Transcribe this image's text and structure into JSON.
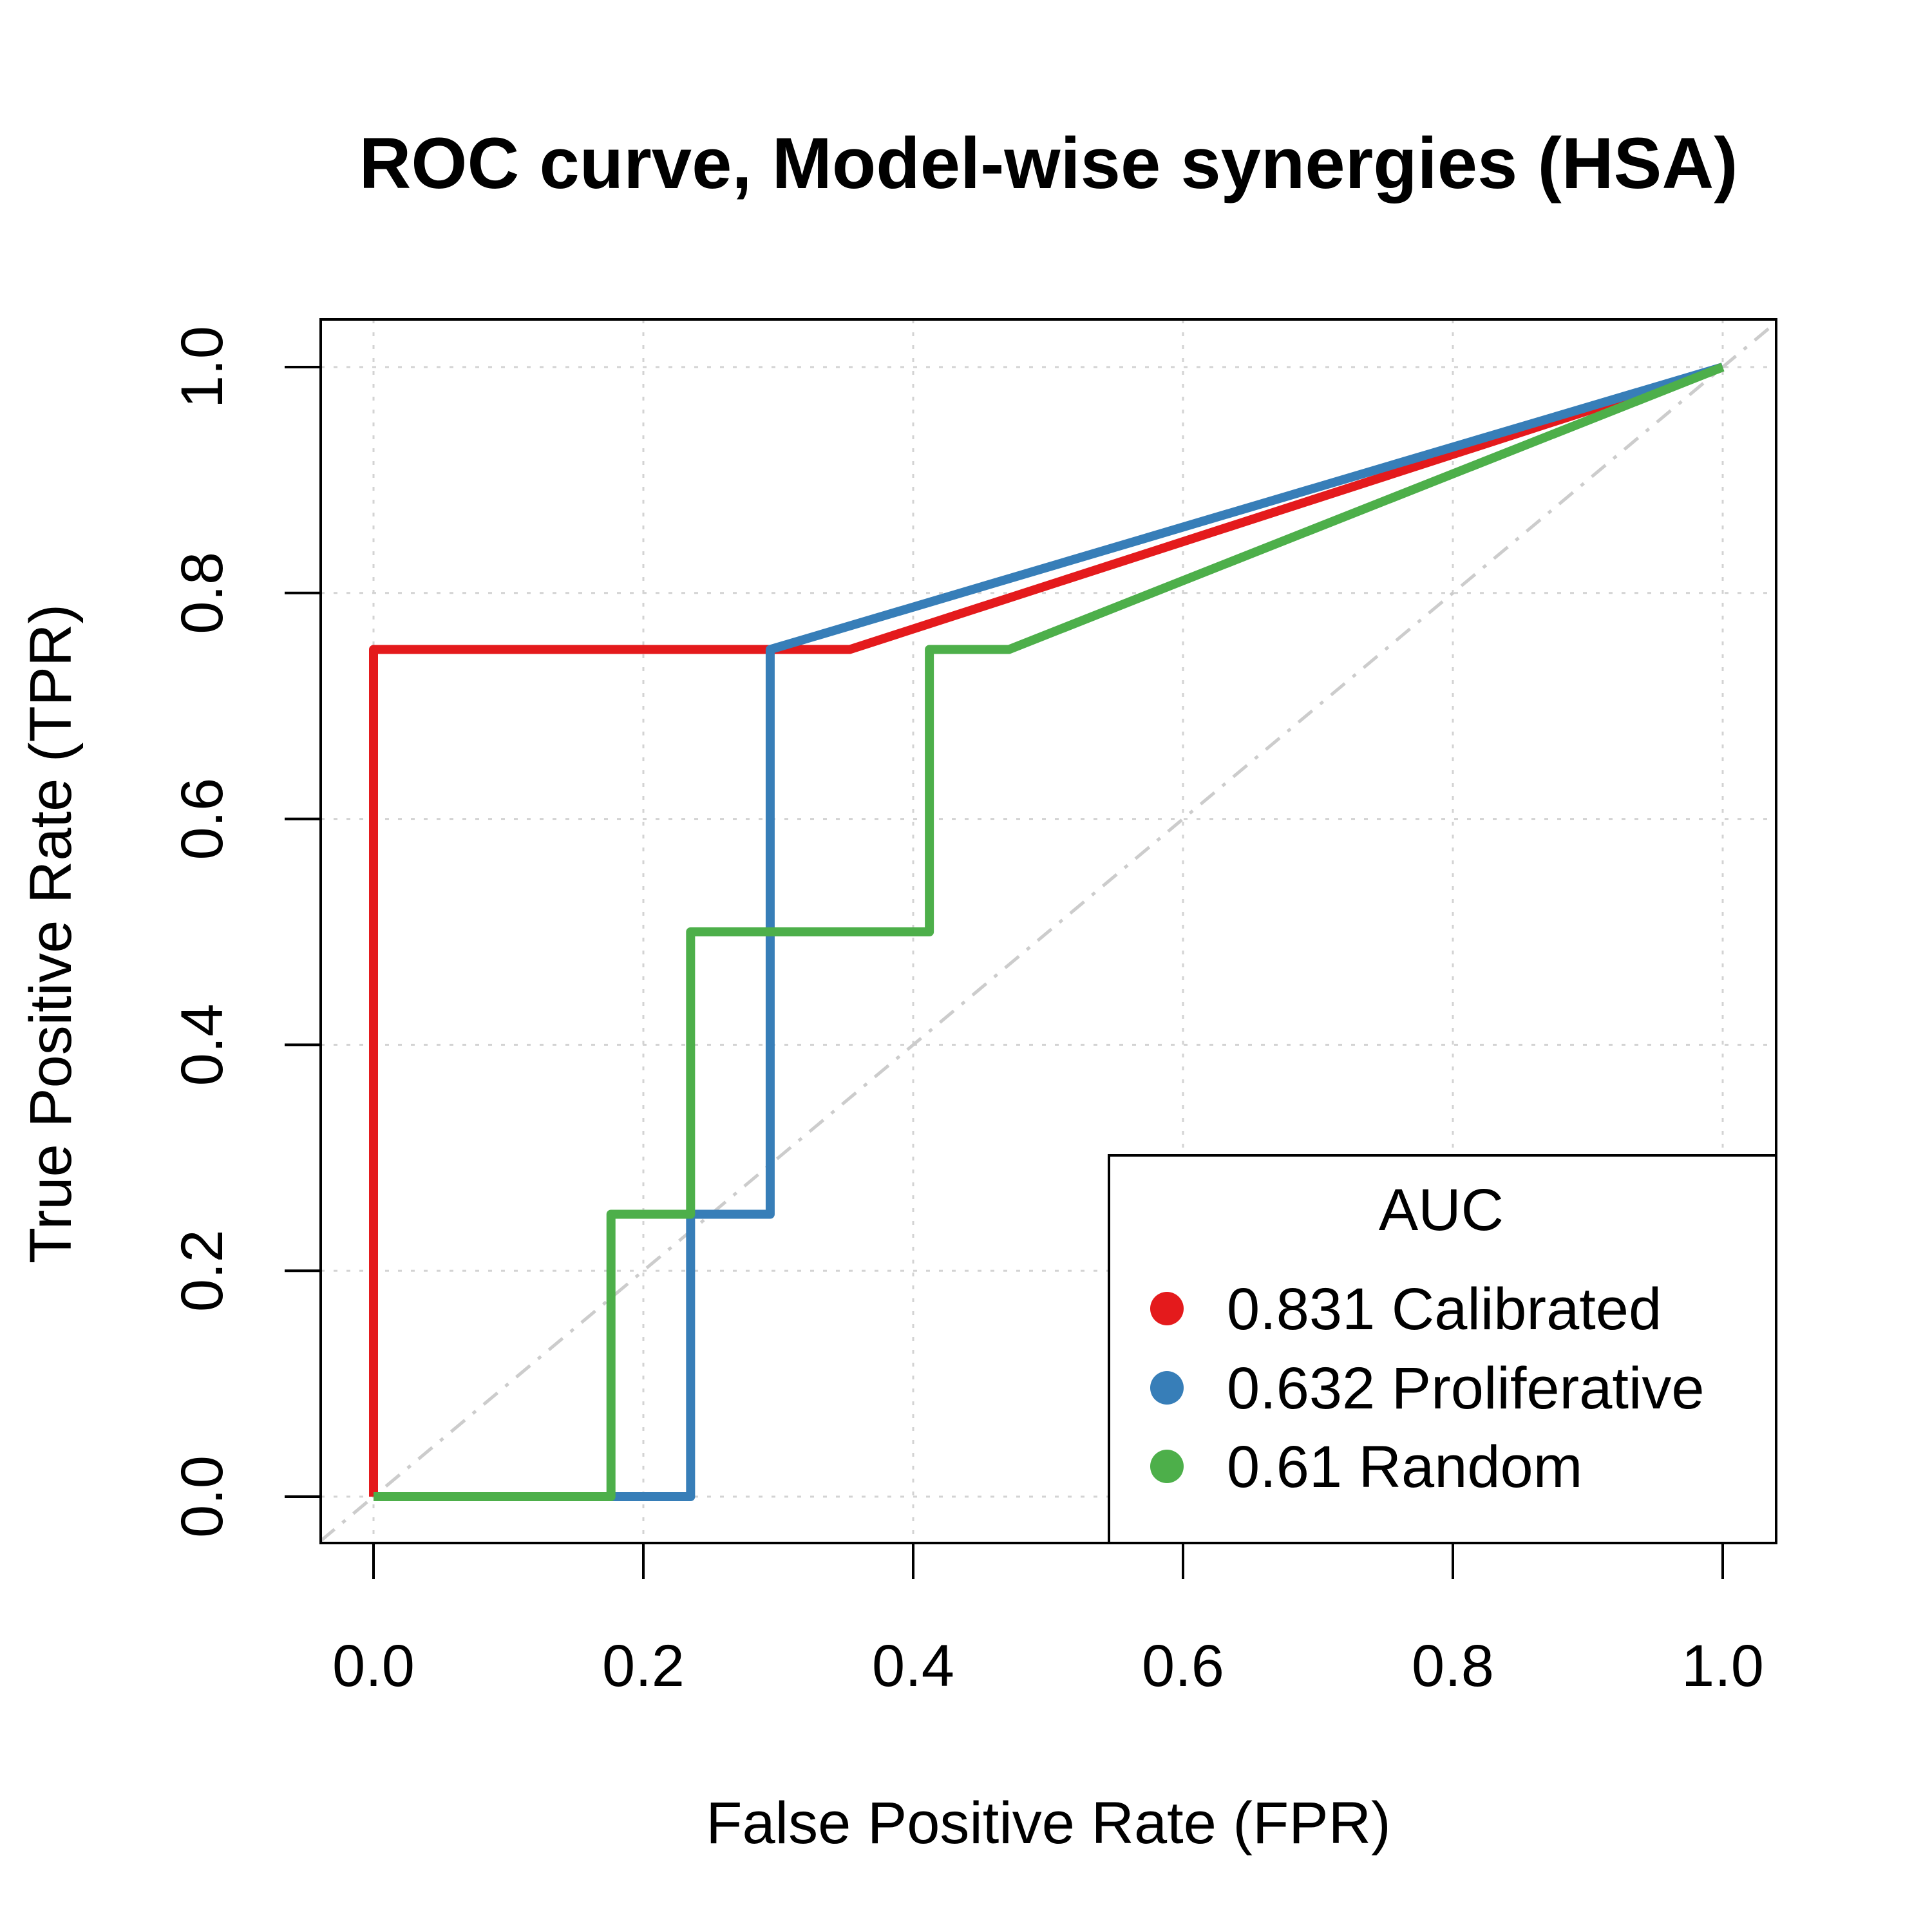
{
  "chart_data": {
    "type": "line",
    "title": "ROC curve, Model-wise synergies (HSA)",
    "xlabel": "False Positive Rate (FPR)",
    "ylabel": "True Positive Rate (TPR)",
    "xlim": [
      0,
      1
    ],
    "ylim": [
      0,
      1
    ],
    "x_ticks": [
      "0.0",
      "0.2",
      "0.4",
      "0.6",
      "0.8",
      "1.0"
    ],
    "y_ticks": [
      "0.0",
      "0.2",
      "0.4",
      "0.6",
      "0.8",
      "1.0"
    ],
    "grid": true,
    "diagonal_reference": true,
    "legend": {
      "title": "AUC",
      "position": "bottom-right",
      "entries": [
        "0.831 Calibrated",
        "0.632 Proliferative",
        "0.61 Random"
      ]
    },
    "series": [
      {
        "name": "0.831 Calibrated",
        "color": "#e41a1c",
        "x": [
          0,
          0,
          0.353,
          1
        ],
        "y": [
          0,
          0.75,
          0.75,
          1
        ]
      },
      {
        "name": "0.632 Proliferative",
        "color": "#377eb8",
        "x": [
          0,
          0.235,
          0.235,
          0.294,
          0.294,
          1
        ],
        "y": [
          0,
          0,
          0.25,
          0.25,
          0.75,
          1
        ]
      },
      {
        "name": "0.61 Random",
        "color": "#4daf4a",
        "x": [
          0,
          0.176,
          0.176,
          0.235,
          0.235,
          0.412,
          0.412,
          0.471,
          1
        ],
        "y": [
          0,
          0,
          0.25,
          0.25,
          0.5,
          0.5,
          0.75,
          0.75,
          1
        ]
      }
    ]
  }
}
